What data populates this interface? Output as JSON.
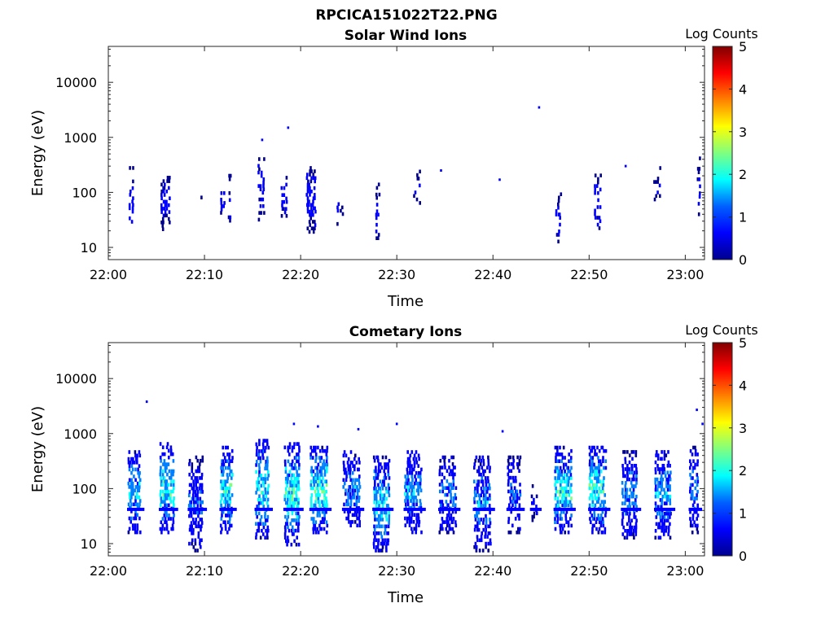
{
  "figure": {
    "title": "RPCICA151022T22.PNG"
  },
  "colormap": [
    "#00008f",
    "#0000ff",
    "#0080ff",
    "#00ffff",
    "#80ff80",
    "#ffff00",
    "#ff8000",
    "#ff0000",
    "#800000"
  ],
  "chart_data": [
    {
      "type": "heatmap",
      "title": "Solar Wind Ions",
      "xlabel": "Time",
      "ylabel": "Energy (eV)",
      "colorbar_label": "Log Counts",
      "x_ticks": [
        "22:00",
        "22:10",
        "22:20",
        "22:30",
        "22:40",
        "22:50",
        "23:00"
      ],
      "xlim_minutes": [
        0,
        62
      ],
      "y_scale": "log",
      "ylim": [
        6,
        45000
      ],
      "y_ticks": [
        {
          "value": 10,
          "label": "10"
        },
        {
          "value": 100,
          "label": "100"
        },
        {
          "value": 1000,
          "label": "1000"
        },
        {
          "value": 10000,
          "label": "10000"
        }
      ],
      "clim": [
        0,
        5
      ],
      "c_ticks": [
        "0",
        "1",
        "2",
        "3",
        "4",
        "5"
      ],
      "clusters": [
        {
          "t": 2.3,
          "e": [
            18,
            300
          ],
          "w": 0.5,
          "cmax": 0.7,
          "n": 40,
          "gap": 0.55
        },
        {
          "t": 5.8,
          "e": [
            20,
            200
          ],
          "w": 1.0,
          "cmax": 0.8,
          "n": 45,
          "gap": 0.4
        },
        {
          "t": 9.5,
          "e": [
            50,
            100
          ],
          "w": 0.5,
          "cmax": 0.4,
          "n": 6,
          "gap": 0.7
        },
        {
          "t": 11.8,
          "e": [
            40,
            120
          ],
          "w": 0.5,
          "cmax": 0.9,
          "n": 25,
          "gap": 0.3
        },
        {
          "t": 12.5,
          "e": [
            12,
            250
          ],
          "w": 0.25,
          "cmax": 0.5,
          "n": 12,
          "gap": 0.6
        },
        {
          "t": 15.8,
          "e": [
            30,
            500
          ],
          "w": 0.7,
          "cmax": 0.8,
          "n": 40,
          "gap": 0.5
        },
        {
          "t": 18.2,
          "e": [
            35,
            200
          ],
          "w": 0.7,
          "cmax": 0.9,
          "n": 35,
          "gap": 0.45
        },
        {
          "t": 21.0,
          "e": [
            18,
            300
          ],
          "w": 1.0,
          "cmax": 0.9,
          "n": 50,
          "gap": 0.4
        },
        {
          "t": 24.0,
          "e": [
            25,
            100
          ],
          "w": 0.7,
          "cmax": 0.6,
          "n": 12,
          "gap": 0.6
        },
        {
          "t": 27.9,
          "e": [
            12,
            150
          ],
          "w": 0.5,
          "cmax": 0.7,
          "n": 20,
          "gap": 0.5
        },
        {
          "t": 32.0,
          "e": [
            60,
            300
          ],
          "w": 0.7,
          "cmax": 0.5,
          "n": 8,
          "gap": 0.6
        },
        {
          "t": 46.7,
          "e": [
            12,
            100
          ],
          "w": 0.6,
          "cmax": 0.8,
          "n": 25,
          "gap": 0.5
        },
        {
          "t": 50.8,
          "e": [
            18,
            220
          ],
          "w": 0.7,
          "cmax": 0.9,
          "n": 30,
          "gap": 0.4
        },
        {
          "t": 57.0,
          "e": [
            60,
            300
          ],
          "w": 0.8,
          "cmax": 0.5,
          "n": 15,
          "gap": 0.6
        },
        {
          "t": 61.3,
          "e": [
            18,
            450
          ],
          "w": 0.3,
          "cmax": 0.5,
          "n": 10,
          "gap": 0.6
        }
      ],
      "points": [
        {
          "t": 18.7,
          "e": 1500,
          "c": 0.5
        },
        {
          "t": 16.0,
          "e": 900,
          "c": 0.5
        },
        {
          "t": 44.8,
          "e": 3500,
          "c": 0.5
        },
        {
          "t": 40.7,
          "e": 170,
          "c": 0.5
        },
        {
          "t": 34.6,
          "e": 250,
          "c": 0.5
        },
        {
          "t": 53.8,
          "e": 300,
          "c": 0.5
        }
      ]
    },
    {
      "type": "heatmap",
      "title": "Cometary Ions",
      "xlabel": "Time",
      "ylabel": "Energy (eV)",
      "colorbar_label": "Log Counts",
      "x_ticks": [
        "22:00",
        "22:10",
        "22:20",
        "22:30",
        "22:40",
        "22:50",
        "23:00"
      ],
      "xlim_minutes": [
        0,
        62
      ],
      "y_scale": "log",
      "ylim": [
        6,
        45000
      ],
      "y_ticks": [
        {
          "value": 10,
          "label": "10"
        },
        {
          "value": 100,
          "label": "100"
        },
        {
          "value": 1000,
          "label": "1000"
        },
        {
          "value": 10000,
          "label": "10000"
        }
      ],
      "clim": [
        0,
        5
      ],
      "c_ticks": [
        "0",
        "1",
        "2",
        "3",
        "4",
        "5"
      ],
      "band_energy": 42,
      "clusters": [
        {
          "t": 2.6,
          "e": [
            15,
            500
          ],
          "w": 1.3,
          "cmax": 1.9,
          "n": 120,
          "gap": 0.2
        },
        {
          "t": 6.0,
          "e": [
            15,
            700
          ],
          "w": 1.5,
          "cmax": 2.3,
          "n": 130,
          "gap": 0.2
        },
        {
          "t": 9.0,
          "e": [
            7,
            400
          ],
          "w": 1.5,
          "cmax": 1.2,
          "n": 100,
          "gap": 0.3
        },
        {
          "t": 12.2,
          "e": [
            15,
            600
          ],
          "w": 1.3,
          "cmax": 2.4,
          "n": 110,
          "gap": 0.2
        },
        {
          "t": 15.9,
          "e": [
            12,
            800
          ],
          "w": 1.4,
          "cmax": 2.2,
          "n": 130,
          "gap": 0.2
        },
        {
          "t": 19.0,
          "e": [
            9,
            700
          ],
          "w": 1.6,
          "cmax": 2.5,
          "n": 140,
          "gap": 0.2
        },
        {
          "t": 21.8,
          "e": [
            15,
            600
          ],
          "w": 1.8,
          "cmax": 2.6,
          "n": 140,
          "gap": 0.2
        },
        {
          "t": 25.2,
          "e": [
            20,
            500
          ],
          "w": 1.8,
          "cmax": 1.6,
          "n": 120,
          "gap": 0.25
        },
        {
          "t": 28.3,
          "e": [
            7,
            400
          ],
          "w": 1.7,
          "cmax": 2.0,
          "n": 130,
          "gap": 0.2
        },
        {
          "t": 31.6,
          "e": [
            15,
            500
          ],
          "w": 1.8,
          "cmax": 1.7,
          "n": 130,
          "gap": 0.2
        },
        {
          "t": 35.2,
          "e": [
            15,
            400
          ],
          "w": 1.8,
          "cmax": 1.4,
          "n": 120,
          "gap": 0.25
        },
        {
          "t": 38.8,
          "e": [
            7,
            400
          ],
          "w": 1.8,
          "cmax": 1.6,
          "n": 120,
          "gap": 0.25
        },
        {
          "t": 42.1,
          "e": [
            15,
            400
          ],
          "w": 1.4,
          "cmax": 1.2,
          "n": 90,
          "gap": 0.3
        },
        {
          "t": 44.2,
          "e": [
            25,
            120
          ],
          "w": 0.7,
          "cmax": 0.7,
          "n": 30,
          "gap": 0.4
        },
        {
          "t": 47.2,
          "e": [
            15,
            600
          ],
          "w": 1.8,
          "cmax": 2.4,
          "n": 140,
          "gap": 0.2
        },
        {
          "t": 50.8,
          "e": [
            15,
            600
          ],
          "w": 1.8,
          "cmax": 2.4,
          "n": 140,
          "gap": 0.2
        },
        {
          "t": 54.1,
          "e": [
            12,
            500
          ],
          "w": 1.6,
          "cmax": 1.6,
          "n": 110,
          "gap": 0.25
        },
        {
          "t": 57.6,
          "e": [
            12,
            500
          ],
          "w": 1.7,
          "cmax": 1.7,
          "n": 120,
          "gap": 0.25
        },
        {
          "t": 60.8,
          "e": [
            15,
            600
          ],
          "w": 0.9,
          "cmax": 1.4,
          "n": 70,
          "gap": 0.3
        }
      ],
      "points": [
        {
          "t": 4.0,
          "e": 3800,
          "c": 0.5
        },
        {
          "t": 19.3,
          "e": 1500,
          "c": 0.5
        },
        {
          "t": 21.8,
          "e": 1350,
          "c": 0.5
        },
        {
          "t": 26.0,
          "e": 1200,
          "c": 0.5
        },
        {
          "t": 30.0,
          "e": 1500,
          "c": 0.5
        },
        {
          "t": 41.0,
          "e": 1100,
          "c": 0.5
        },
        {
          "t": 61.2,
          "e": 2700,
          "c": 0.5
        },
        {
          "t": 61.8,
          "e": 1500,
          "c": 0.5
        }
      ]
    }
  ]
}
